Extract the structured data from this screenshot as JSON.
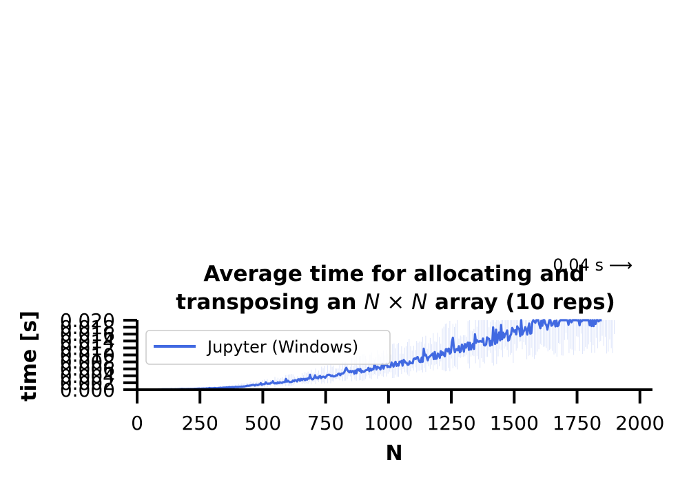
{
  "chart_data": {
    "type": "line",
    "title_line1": "Average time for allocating and",
    "title_line2_prefix": "transposing an ",
    "title_line2_math": "N × N",
    "title_line2_suffix": " array (10 reps)",
    "xlabel": "N",
    "ylabel": "time [s]",
    "xlim": [
      0,
      2050
    ],
    "ylim": [
      0.0,
      0.02
    ],
    "xticks": [
      0,
      250,
      500,
      750,
      1000,
      1250,
      1500,
      1750,
      2000
    ],
    "yticks": [
      0.0,
      0.002,
      0.004,
      0.006,
      0.008,
      0.01,
      0.012,
      0.014,
      0.016,
      0.018,
      0.02
    ],
    "xtick_labels": [
      "0",
      "250",
      "500",
      "750",
      "1000",
      "1250",
      "1500",
      "1750",
      "2000"
    ],
    "ytick_labels": [
      "0.000",
      "0.002",
      "0.004",
      "0.006",
      "0.008",
      "0.010",
      "0.012",
      "0.014",
      "0.016",
      "0.018",
      "0.020"
    ],
    "grid": false,
    "legend_position": "upper-left",
    "annotation": "0.04 s ⟶",
    "series": [
      {
        "name": "Jupyter (Windows)",
        "color": "#4169e1",
        "x": [
          0,
          100,
          200,
          300,
          400,
          500,
          600,
          700,
          800,
          900,
          1000,
          1100,
          1200,
          1300,
          1400,
          1500,
          1600,
          1700
        ],
        "values": [
          0.0,
          0.0001,
          0.0002,
          0.0004,
          0.0008,
          0.0015,
          0.0023,
          0.0032,
          0.0043,
          0.0055,
          0.0068,
          0.0082,
          0.0099,
          0.0118,
          0.0138,
          0.016,
          0.0183,
          0.02
        ]
      }
    ]
  }
}
